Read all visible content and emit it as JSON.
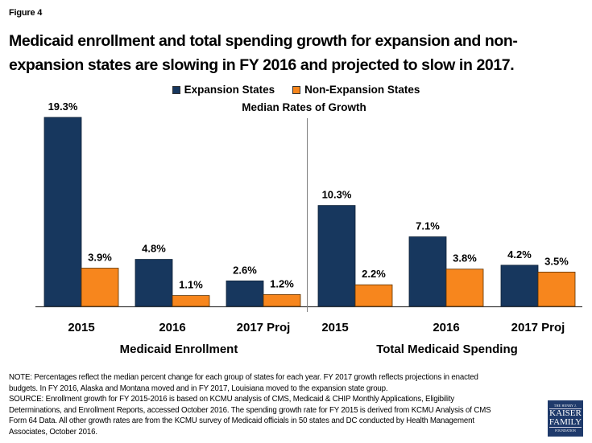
{
  "figure_label": "Figure 4",
  "title_line1": "Medicaid enrollment and total spending growth for expansion and non-",
  "title_line2": "expansion states are slowing in FY 2016 and projected to slow in 2017.",
  "logo": {
    "line1": "THE HENRY J.",
    "line2": "KAISER",
    "line3": "FAMILY",
    "line4": "FOUNDATION"
  },
  "notes": [
    "NOTE: Percentages reflect the median percent change for each group of states for each year. FY 2017 growth reflects projections in enacted",
    "budgets. In FY 2016, Alaska and Montana moved and in FY 2017, Louisiana moved to the expansion state group.",
    "SOURCE: Enrollment growth for FY 2015-2016 is based on KCMU analysis of CMS, Medicaid & CHIP Monthly Applications, Eligibility",
    "Determinations, and Enrollment Reports, accessed October 2016. The spending growth rate for FY 2015 is derived from KCMU Analysis of CMS",
    "Form 64 Data. All other growth rates are from the KCMU survey of Medicaid officials in 50 states and DC conducted by Health Management",
    "Associates, October 2016."
  ],
  "chart_data": {
    "type": "bar",
    "title": "Median Rates of Growth",
    "legend_position": "top-center",
    "grid": false,
    "ylim": [
      0,
      19.3
    ],
    "colors": {
      "Expansion States": "#17375e",
      "Non-Expansion States": "#f7861d"
    },
    "series_names": [
      "Expansion States",
      "Non-Expansion States"
    ],
    "panels": [
      {
        "name": "Medicaid Enrollment",
        "categories": [
          "2015",
          "2016",
          "2017 Proj"
        ],
        "series": [
          {
            "name": "Expansion States",
            "values": [
              19.3,
              4.8,
              2.6
            ],
            "labels": [
              "19.3%",
              "4.8%",
              "2.6%"
            ]
          },
          {
            "name": "Non-Expansion States",
            "values": [
              3.9,
              1.1,
              1.2
            ],
            "labels": [
              "3.9%",
              "1.1%",
              "1.2%"
            ]
          }
        ]
      },
      {
        "name": "Total Medicaid Spending",
        "categories": [
          "2015",
          "2016",
          "2017 Proj"
        ],
        "series": [
          {
            "name": "Expansion States",
            "values": [
              10.3,
              7.1,
              4.2
            ],
            "labels": [
              "10.3%",
              "7.1%",
              "4.2%"
            ]
          },
          {
            "name": "Non-Expansion States",
            "values": [
              2.2,
              3.8,
              3.5
            ],
            "labels": [
              "2.2%",
              "3.8%",
              "3.5%"
            ]
          }
        ]
      }
    ]
  }
}
